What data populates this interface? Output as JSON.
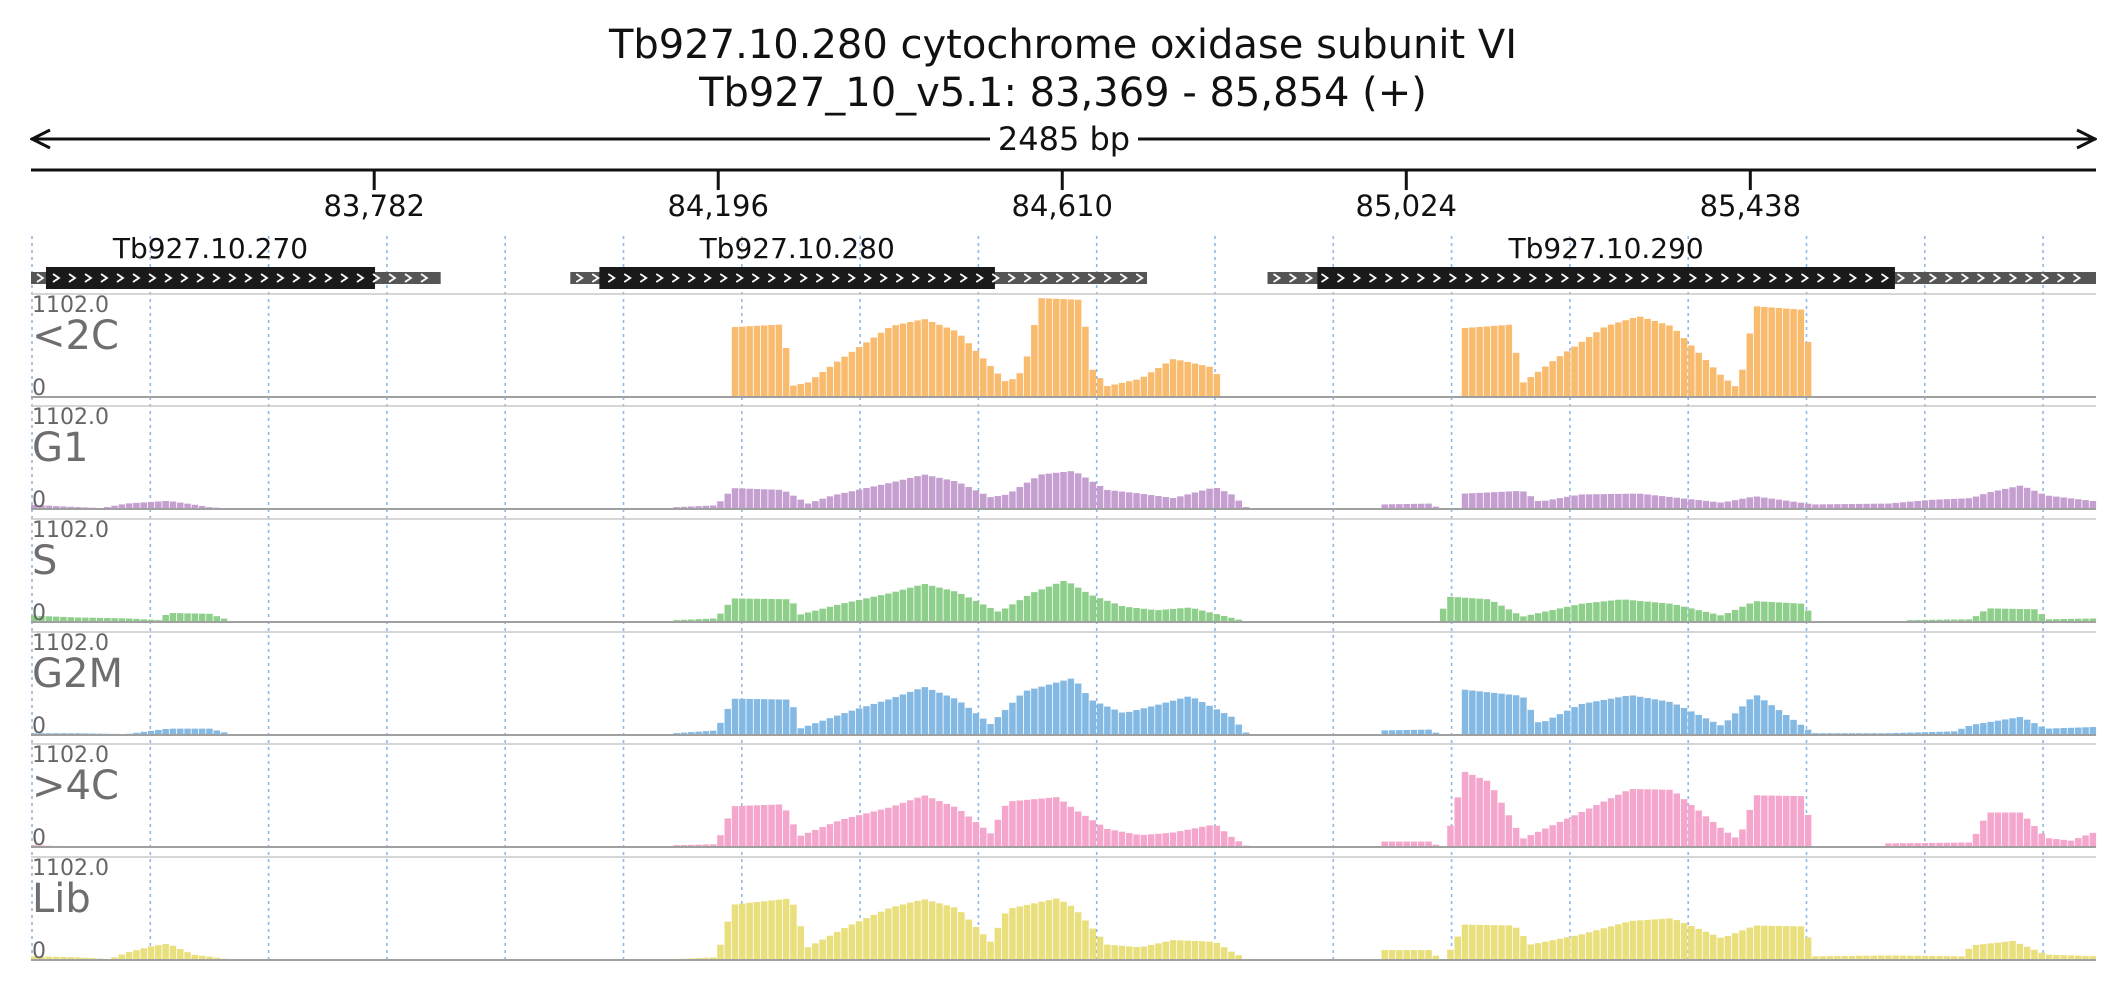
{
  "header": {
    "title_line1": "Tb927.10.280  cytochrome oxidase subunit VI",
    "title_line2": "Tb927_10_v5.1: 83,369 - 85,854 (+)",
    "span_label": "2485 bp"
  },
  "region": {
    "start": 83369,
    "end": 85854
  },
  "ticks": [
    {
      "pos": 83782,
      "label": "83,782"
    },
    {
      "pos": 84196,
      "label": "84,196"
    },
    {
      "pos": 84610,
      "label": "84,610"
    },
    {
      "pos": 85024,
      "label": "85,024"
    },
    {
      "pos": 85438,
      "label": "85,438"
    }
  ],
  "genes": [
    {
      "name": "Tb927.10.270",
      "utr_start": 83369,
      "cds_start": 83387,
      "cds_end": 83783,
      "utr_end": 83862
    },
    {
      "name": "Tb927.10.280",
      "utr_start": 84018,
      "cds_start": 84053,
      "cds_end": 84529,
      "utr_end": 84712
    },
    {
      "name": "Tb927.10.290",
      "utr_start": 84857,
      "cds_start": 84917,
      "cds_end": 85612,
      "utr_end": 85854
    }
  ],
  "chart_data": {
    "type": "area",
    "x_unit": "genomic position (bp)",
    "y_max_label": "1102.0",
    "y_min_label": "0",
    "y_range": [
      0,
      1102
    ],
    "tracks": [
      {
        "name": "<2C",
        "color": "#f9bb6e",
        "points": [
          [
            84210,
            770
          ],
          [
            84270,
            800
          ],
          [
            84280,
            120
          ],
          [
            84300,
            160
          ],
          [
            84340,
            420
          ],
          [
            84400,
            780
          ],
          [
            84440,
            860
          ],
          [
            84480,
            720
          ],
          [
            84540,
            150
          ],
          [
            84560,
            300
          ],
          [
            84580,
            1090
          ],
          [
            84630,
            1070
          ],
          [
            84640,
            330
          ],
          [
            84660,
            120
          ],
          [
            84700,
            200
          ],
          [
            84740,
            420
          ],
          [
            84790,
            320
          ],
          [
            84800,
            0
          ],
          [
            85090,
            760
          ],
          [
            85150,
            800
          ],
          [
            85155,
            120
          ],
          [
            85200,
            420
          ],
          [
            85260,
            780
          ],
          [
            85300,
            890
          ],
          [
            85340,
            780
          ],
          [
            85400,
            230
          ],
          [
            85420,
            90
          ],
          [
            85440,
            1000
          ],
          [
            85500,
            960
          ],
          [
            85510,
            0
          ]
        ]
      },
      {
        "name": "G1",
        "color": "#c49fcf",
        "points": [
          [
            83369,
            45
          ],
          [
            83400,
            30
          ],
          [
            83450,
            10
          ],
          [
            83480,
            60
          ],
          [
            83530,
            90
          ],
          [
            83560,
            50
          ],
          [
            83580,
            20
          ],
          [
            83610,
            0
          ],
          [
            84140,
            20
          ],
          [
            84190,
            40
          ],
          [
            84210,
            230
          ],
          [
            84270,
            210
          ],
          [
            84300,
            60
          ],
          [
            84330,
            150
          ],
          [
            84400,
            290
          ],
          [
            84440,
            380
          ],
          [
            84480,
            300
          ],
          [
            84520,
            130
          ],
          [
            84540,
            160
          ],
          [
            84580,
            380
          ],
          [
            84620,
            420
          ],
          [
            84660,
            210
          ],
          [
            84700,
            170
          ],
          [
            84740,
            120
          ],
          [
            84790,
            240
          ],
          [
            84810,
            160
          ],
          [
            84830,
            0
          ],
          [
            84990,
            50
          ],
          [
            85050,
            60
          ],
          [
            85060,
            0
          ],
          [
            85090,
            170
          ],
          [
            85160,
            200
          ],
          [
            85180,
            80
          ],
          [
            85230,
            160
          ],
          [
            85300,
            170
          ],
          [
            85360,
            110
          ],
          [
            85400,
            70
          ],
          [
            85440,
            140
          ],
          [
            85510,
            50
          ],
          [
            85600,
            60
          ],
          [
            85650,
            100
          ],
          [
            85700,
            120
          ],
          [
            85720,
            180
          ],
          [
            85760,
            260
          ],
          [
            85790,
            150
          ],
          [
            85854,
            80
          ]
        ]
      },
      {
        "name": "S",
        "color": "#8fcf8c",
        "points": [
          [
            83369,
            70
          ],
          [
            83420,
            50
          ],
          [
            83480,
            40
          ],
          [
            83520,
            20
          ],
          [
            83530,
            100
          ],
          [
            83580,
            90
          ],
          [
            83610,
            0
          ],
          [
            84140,
            20
          ],
          [
            84190,
            40
          ],
          [
            84210,
            260
          ],
          [
            84280,
            250
          ],
          [
            84290,
            80
          ],
          [
            84340,
            200
          ],
          [
            84400,
            320
          ],
          [
            84440,
            420
          ],
          [
            84480,
            330
          ],
          [
            84530,
            110
          ],
          [
            84570,
            320
          ],
          [
            84610,
            460
          ],
          [
            84640,
            300
          ],
          [
            84680,
            170
          ],
          [
            84720,
            130
          ],
          [
            84760,
            160
          ],
          [
            84830,
            0
          ],
          [
            85060,
            40
          ],
          [
            85070,
            280
          ],
          [
            85120,
            250
          ],
          [
            85160,
            60
          ],
          [
            85230,
            200
          ],
          [
            85280,
            250
          ],
          [
            85340,
            200
          ],
          [
            85400,
            70
          ],
          [
            85440,
            230
          ],
          [
            85500,
            200
          ],
          [
            85510,
            0
          ],
          [
            85620,
            20
          ],
          [
            85700,
            30
          ],
          [
            85720,
            150
          ],
          [
            85780,
            140
          ],
          [
            85790,
            30
          ],
          [
            85854,
            40
          ]
        ]
      },
      {
        "name": "G2M",
        "color": "#84b9e4",
        "points": [
          [
            83369,
            20
          ],
          [
            83420,
            20
          ],
          [
            83480,
            10
          ],
          [
            83530,
            70
          ],
          [
            83580,
            70
          ],
          [
            83610,
            0
          ],
          [
            84140,
            20
          ],
          [
            84190,
            50
          ],
          [
            84210,
            400
          ],
          [
            84280,
            390
          ],
          [
            84290,
            70
          ],
          [
            84350,
            260
          ],
          [
            84400,
            400
          ],
          [
            84440,
            530
          ],
          [
            84480,
            390
          ],
          [
            84520,
            120
          ],
          [
            84560,
            480
          ],
          [
            84620,
            630
          ],
          [
            84640,
            390
          ],
          [
            84680,
            240
          ],
          [
            84720,
            330
          ],
          [
            84760,
            430
          ],
          [
            84810,
            200
          ],
          [
            84830,
            0
          ],
          [
            84990,
            50
          ],
          [
            85050,
            60
          ],
          [
            85060,
            0
          ],
          [
            85090,
            500
          ],
          [
            85160,
            430
          ],
          [
            85180,
            120
          ],
          [
            85230,
            340
          ],
          [
            85290,
            440
          ],
          [
            85340,
            360
          ],
          [
            85400,
            100
          ],
          [
            85440,
            450
          ],
          [
            85510,
            20
          ],
          [
            85600,
            20
          ],
          [
            85680,
            40
          ],
          [
            85700,
            110
          ],
          [
            85760,
            200
          ],
          [
            85790,
            70
          ],
          [
            85854,
            90
          ]
        ]
      },
      {
        "name": ">4C",
        "color": "#f4a6cc",
        "points": [
          [
            83369,
            20
          ],
          [
            83400,
            10
          ],
          [
            83450,
            0
          ],
          [
            84140,
            20
          ],
          [
            84190,
            30
          ],
          [
            84210,
            450
          ],
          [
            84270,
            470
          ],
          [
            84290,
            120
          ],
          [
            84340,
            300
          ],
          [
            84400,
            440
          ],
          [
            84440,
            570
          ],
          [
            84480,
            430
          ],
          [
            84520,
            150
          ],
          [
            84540,
            500
          ],
          [
            84600,
            550
          ],
          [
            84620,
            420
          ],
          [
            84660,
            200
          ],
          [
            84700,
            130
          ],
          [
            84740,
            160
          ],
          [
            84790,
            250
          ],
          [
            84810,
            110
          ],
          [
            84830,
            0
          ],
          [
            84990,
            60
          ],
          [
            85050,
            60
          ],
          [
            85060,
            0
          ],
          [
            85070,
            120
          ],
          [
            85090,
            830
          ],
          [
            85120,
            720
          ],
          [
            85160,
            90
          ],
          [
            85230,
            380
          ],
          [
            85290,
            640
          ],
          [
            85340,
            630
          ],
          [
            85400,
            200
          ],
          [
            85420,
            80
          ],
          [
            85440,
            570
          ],
          [
            85500,
            560
          ],
          [
            85510,
            0
          ],
          [
            85600,
            40
          ],
          [
            85700,
            50
          ],
          [
            85720,
            380
          ],
          [
            85760,
            380
          ],
          [
            85790,
            100
          ],
          [
            85820,
            70
          ],
          [
            85854,
            180
          ]
        ]
      },
      {
        "name": "Lib",
        "color": "#e9df7c",
        "points": [
          [
            83369,
            40
          ],
          [
            83420,
            30
          ],
          [
            83460,
            10
          ],
          [
            83480,
            80
          ],
          [
            83510,
            150
          ],
          [
            83530,
            180
          ],
          [
            83560,
            60
          ],
          [
            83610,
            0
          ],
          [
            84140,
            10
          ],
          [
            84190,
            30
          ],
          [
            84210,
            610
          ],
          [
            84280,
            680
          ],
          [
            84300,
            140
          ],
          [
            84350,
            380
          ],
          [
            84400,
            580
          ],
          [
            84440,
            670
          ],
          [
            84480,
            570
          ],
          [
            84520,
            200
          ],
          [
            84540,
            560
          ],
          [
            84600,
            680
          ],
          [
            84620,
            580
          ],
          [
            84660,
            170
          ],
          [
            84700,
            140
          ],
          [
            84740,
            220
          ],
          [
            84790,
            200
          ],
          [
            84810,
            90
          ],
          [
            84830,
            0
          ],
          [
            84990,
            110
          ],
          [
            85050,
            110
          ],
          [
            85060,
            0
          ],
          [
            85070,
            60
          ],
          [
            85090,
            390
          ],
          [
            85150,
            380
          ],
          [
            85170,
            170
          ],
          [
            85230,
            280
          ],
          [
            85290,
            430
          ],
          [
            85340,
            460
          ],
          [
            85400,
            240
          ],
          [
            85440,
            380
          ],
          [
            85500,
            370
          ],
          [
            85510,
            40
          ],
          [
            85600,
            50
          ],
          [
            85690,
            40
          ],
          [
            85700,
            160
          ],
          [
            85750,
            210
          ],
          [
            85790,
            60
          ],
          [
            85854,
            40
          ]
        ]
      }
    ]
  }
}
